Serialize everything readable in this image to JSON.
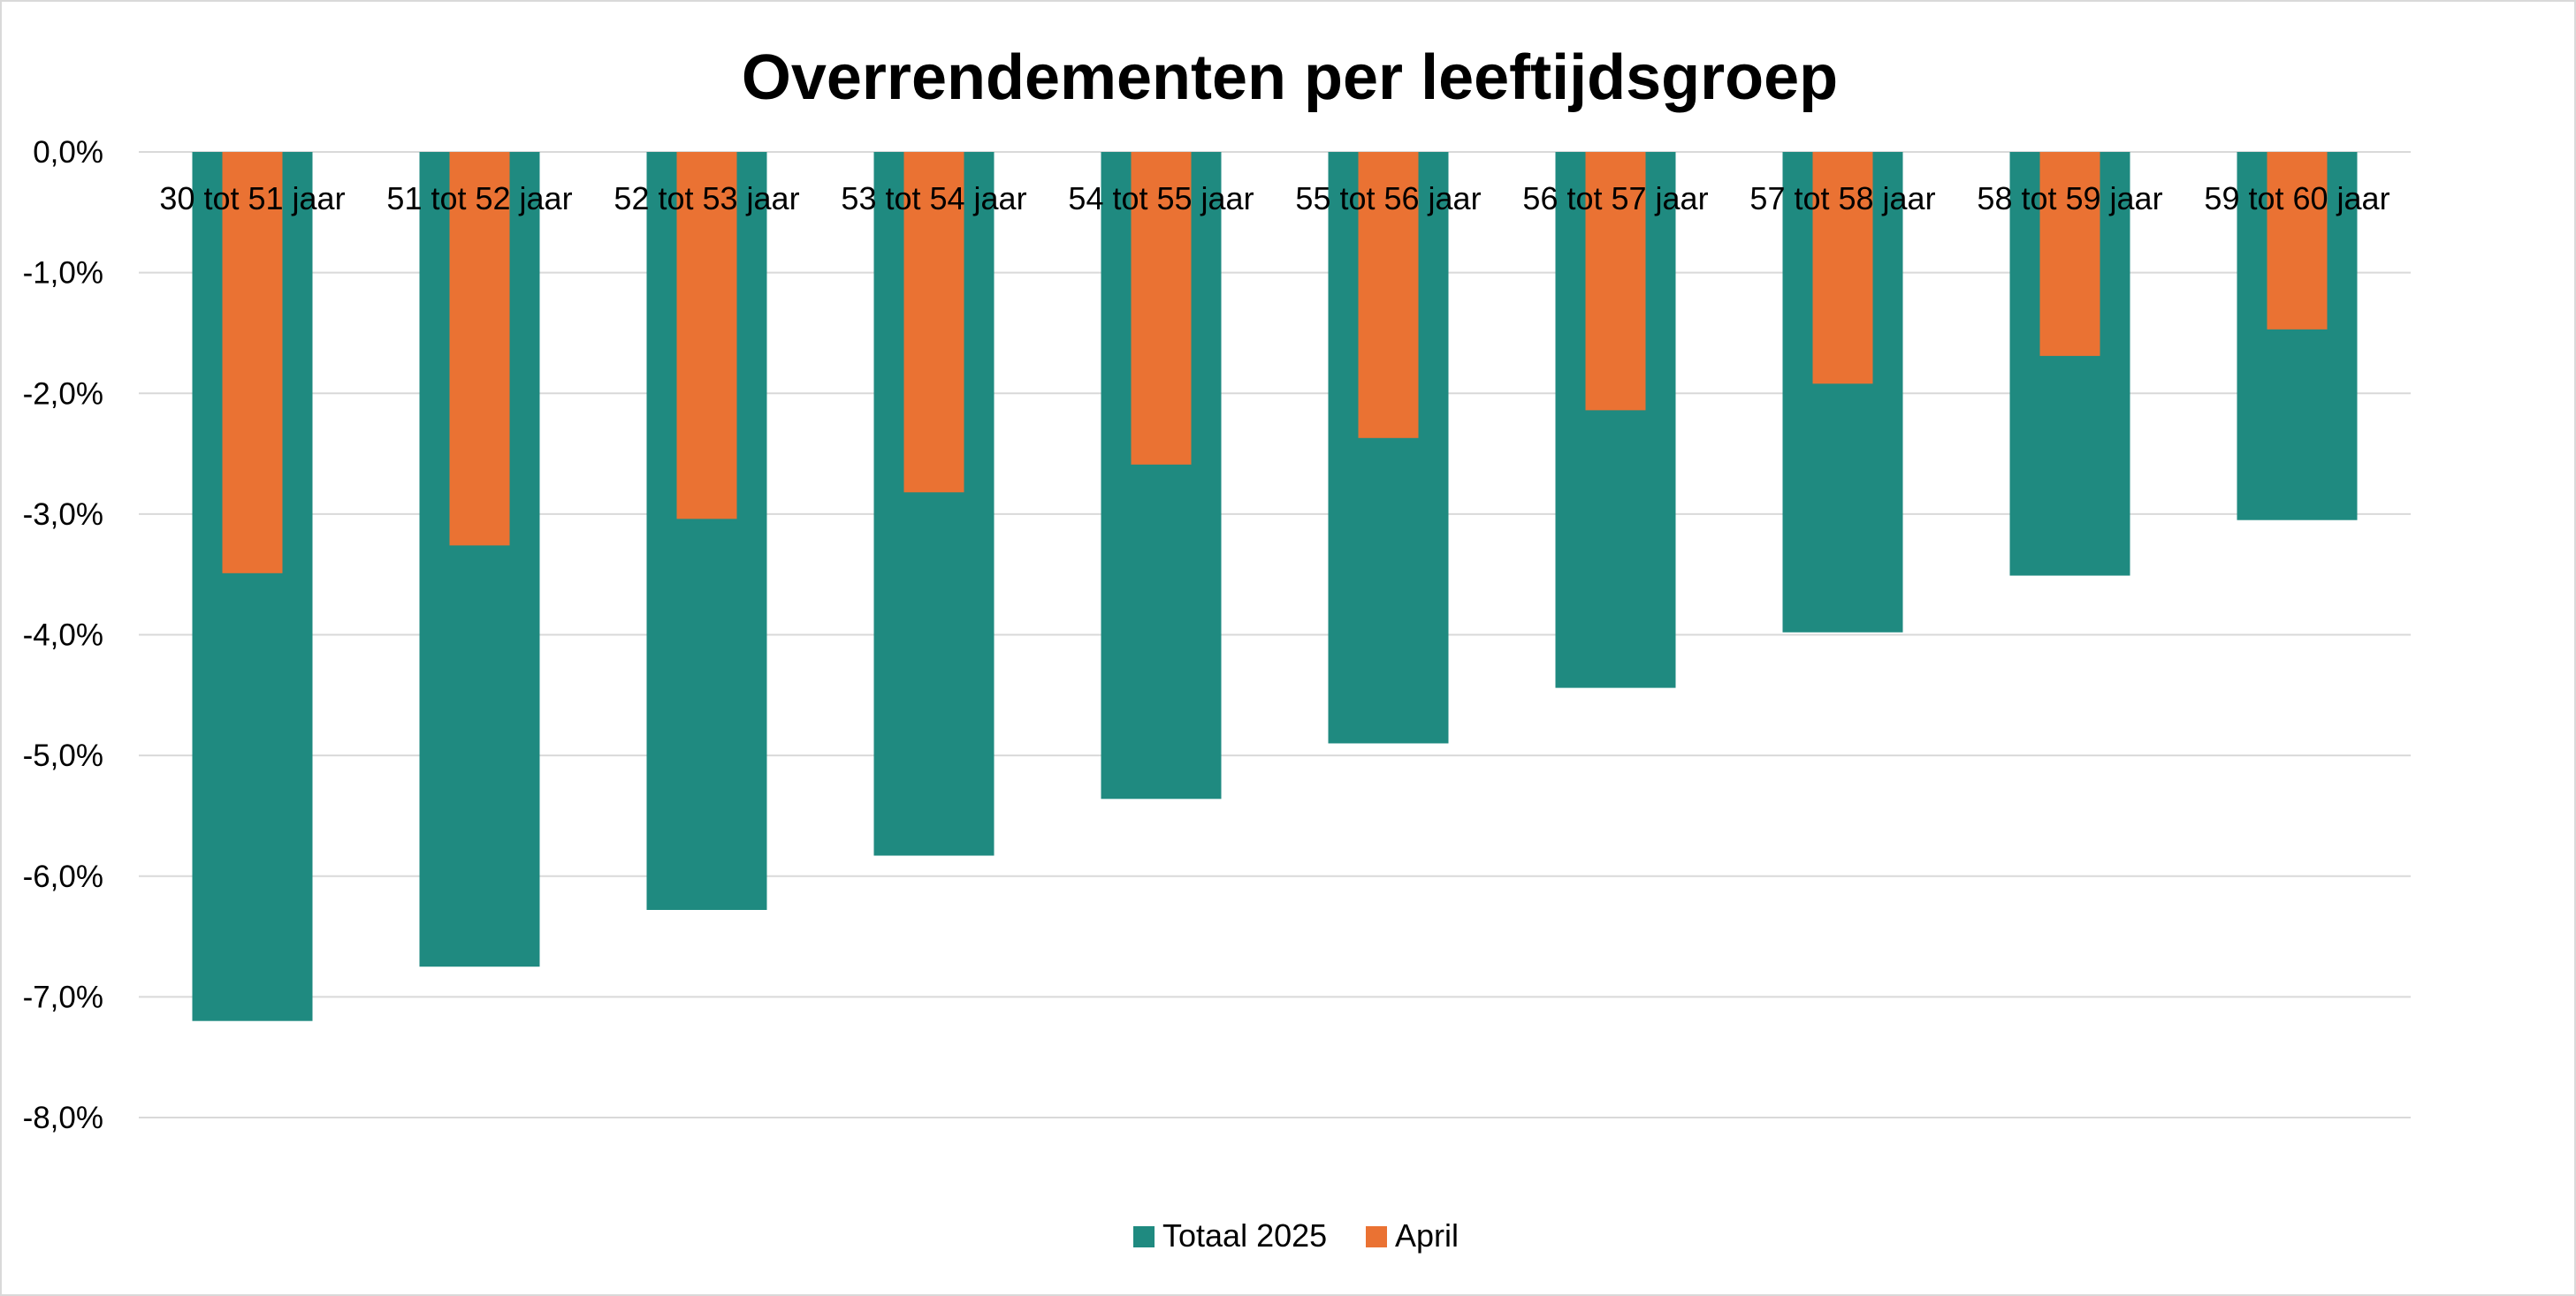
{
  "chart_data": {
    "type": "bar",
    "title": "Overrendementen per leeftijdsgroep",
    "xlabel": "",
    "ylabel": "",
    "categories": [
      "30 tot 51 jaar",
      "51 tot 52 jaar",
      "52 tot 53 jaar",
      "53 tot 54 jaar",
      "54 tot 55 jaar",
      "55 tot 56 jaar",
      "56 tot 57 jaar",
      "57 tot 58 jaar",
      "58 tot 59 jaar",
      "59 tot 60 jaar"
    ],
    "series": [
      {
        "name": "Totaal 2025",
        "color": "#1f8a80",
        "values": [
          -7.2,
          -6.75,
          -6.28,
          -5.83,
          -5.36,
          -4.9,
          -4.44,
          -3.98,
          -3.51,
          -3.05
        ]
      },
      {
        "name": "April",
        "color": "#ea7233",
        "values": [
          -3.49,
          -3.26,
          -3.04,
          -2.82,
          -2.59,
          -2.37,
          -2.14,
          -1.92,
          -1.69,
          -1.47
        ]
      }
    ],
    "ylim": [
      -8,
      0
    ],
    "yticks": [
      0,
      -1,
      -2,
      -3,
      -4,
      -5,
      -6,
      -7,
      -8
    ],
    "ytick_labels": [
      "0,0%",
      "-1,0%",
      "-2,0%",
      "-3,0%",
      "-4,0%",
      "-5,0%",
      "-6,0%",
      "-7,0%",
      "-8,0%"
    ],
    "overlap": true,
    "grid": true,
    "legend_position": "bottom"
  }
}
